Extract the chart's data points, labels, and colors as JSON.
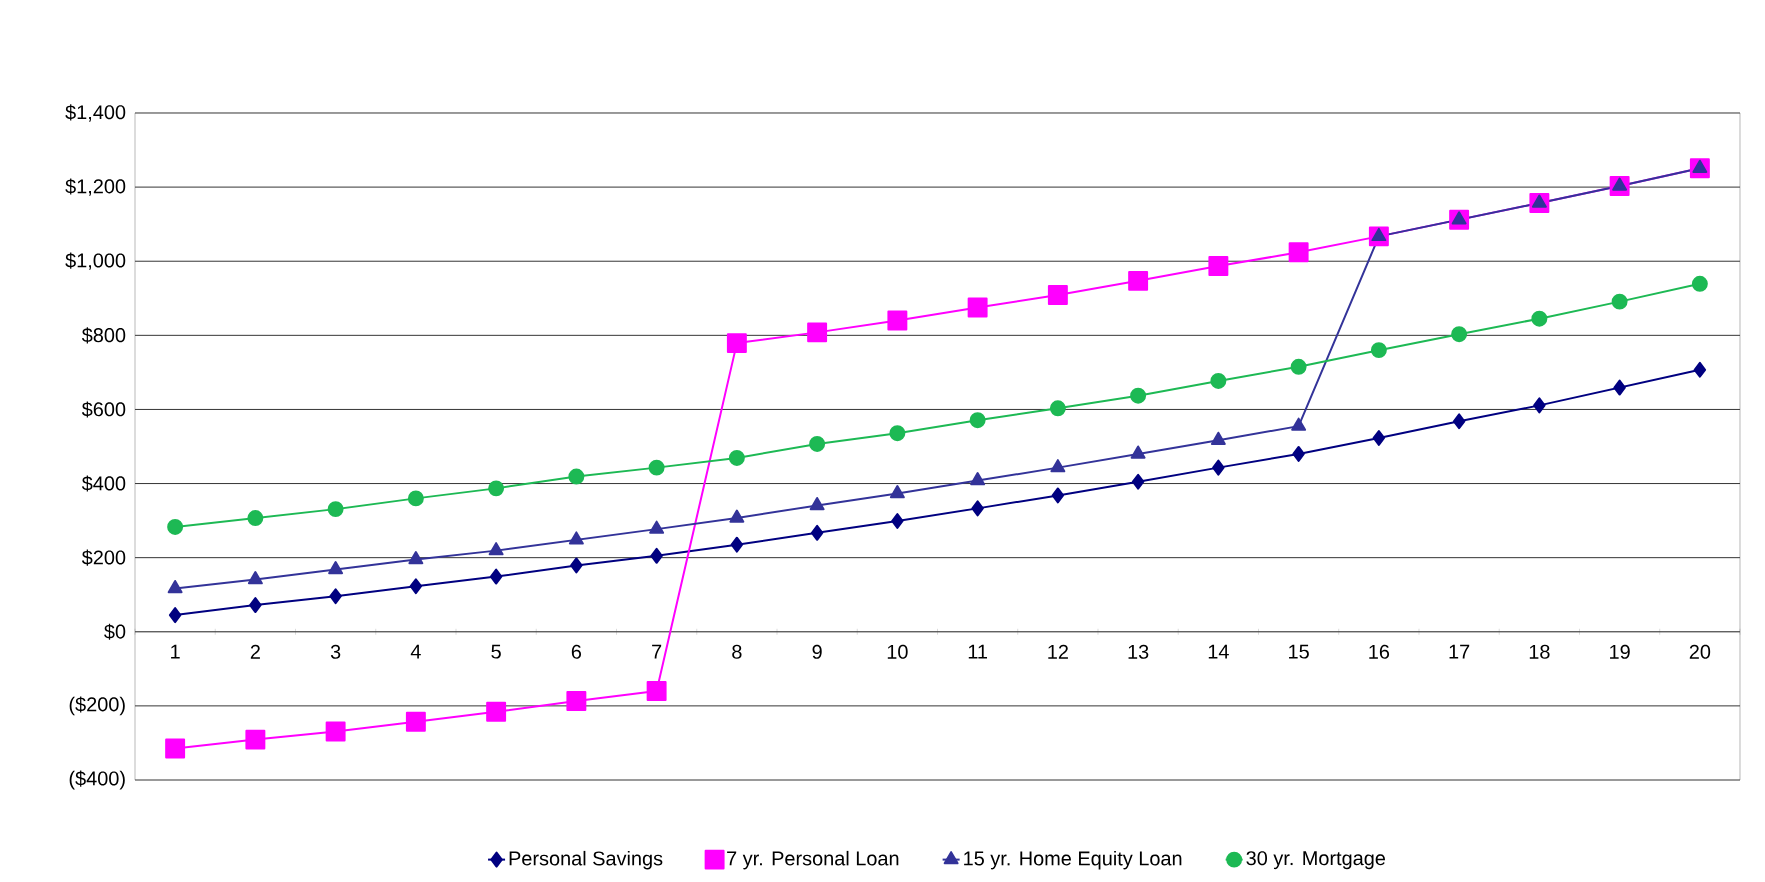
{
  "chart_data": {
    "type": "line",
    "categories": [
      "1",
      "2",
      "3",
      "4",
      "5",
      "6",
      "7",
      "8",
      "9",
      "10",
      "11",
      "12",
      "13",
      "14",
      "15",
      "16",
      "17",
      "18",
      "19",
      "20"
    ],
    "series": [
      {
        "name": "Personal Savings",
        "color": "#000080",
        "marker": "diamond",
        "values": [
          45,
          72,
          96,
          123,
          149,
          179,
          205,
          235,
          267,
          299,
          333,
          368,
          405,
          443,
          480,
          523,
          568,
          611,
          659,
          707
        ]
      },
      {
        "name": "7 yr. Personal Loan",
        "color": "#ff00ff",
        "marker": "square",
        "values": [
          -315,
          -291,
          -269,
          -243,
          -216,
          -187,
          -160,
          779,
          808,
          840,
          875,
          909,
          947,
          987,
          1024,
          1067,
          1112,
          1157,
          1203,
          1251
        ]
      },
      {
        "name": "15 yr. Home Equity Loan",
        "color": "#333399",
        "marker": "triangle",
        "values": [
          117,
          141,
          168,
          195,
          219,
          248,
          277,
          307,
          341,
          373,
          408,
          443,
          480,
          517,
          555,
          1067,
          1112,
          1157,
          1203,
          1251
        ]
      },
      {
        "name": "30 yr. Mortgage",
        "color": "#1db954",
        "marker": "circle",
        "values": [
          283,
          307,
          331,
          360,
          387,
          419,
          443,
          469,
          507,
          536,
          571,
          603,
          637,
          677,
          715,
          760,
          803,
          845,
          891,
          939
        ]
      }
    ],
    "ylim": [
      -400,
      1400
    ],
    "yticks": [
      {
        "value": -400,
        "label": "($400)"
      },
      {
        "value": -200,
        "label": "($200)"
      },
      {
        "value": 0,
        "label": "$0"
      },
      {
        "value": 200,
        "label": "$200"
      },
      {
        "value": 400,
        "label": "$400"
      },
      {
        "value": 600,
        "label": "$600"
      },
      {
        "value": 800,
        "label": "$800"
      },
      {
        "value": 1000,
        "label": "$1,000"
      },
      {
        "value": 1200,
        "label": "$1,200"
      },
      {
        "value": 1400,
        "label": "$1,400"
      }
    ],
    "grid": "y",
    "legend": "bottom"
  }
}
